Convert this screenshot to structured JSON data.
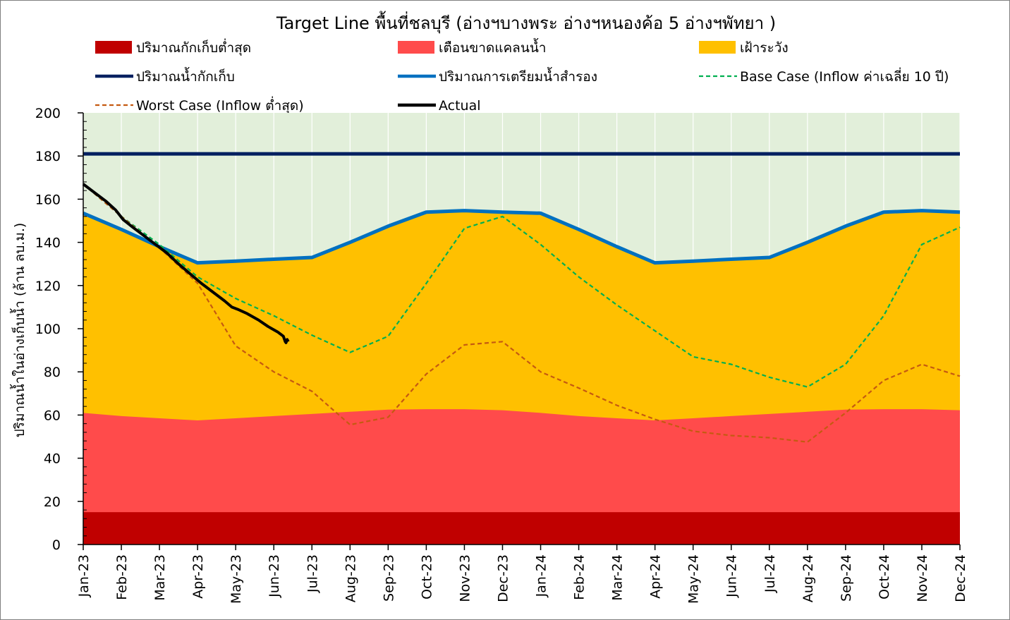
{
  "chart_data": {
    "type": "area",
    "title": "Target Line พื้นที่ชลบุรี (อ่างฯบางพระ อ่างฯหนองค้อ 5 อ่างฯพัทยา )",
    "ylabel": "ปริมาณน้ำในอ่างเก็บน้ำ (ล้าน ลบ.ม.)",
    "xlabel": "",
    "ylim": [
      0,
      200
    ],
    "y_ticks": [
      "0",
      "20",
      "40",
      "60",
      "80",
      "100",
      "120",
      "140",
      "160",
      "180",
      "200"
    ],
    "categories": [
      "Jan-23",
      "Feb-23",
      "Mar-23",
      "Apr-23",
      "May-23",
      "Jun-23",
      "Jul-23",
      "Aug-23",
      "Sep-23",
      "Oct-23",
      "Nov-23",
      "Dec-23",
      "Jan-24",
      "Feb-24",
      "Mar-24",
      "Apr-24",
      "May-24",
      "Jun-24",
      "Jul-24",
      "Aug-24",
      "Sep-24",
      "Oct-24",
      "Nov-24",
      "Dec-24"
    ],
    "background_color": "#e2efda",
    "legend": {
      "position": "top",
      "items": [
        {
          "label": "ปริมาณกักเก็บต่ำสุด",
          "kind": "fill",
          "color": "#c00000"
        },
        {
          "label": "เตือนขาดแคลนน้ำ",
          "kind": "fill",
          "color": "#ff4b4b"
        },
        {
          "label": "เฝ้าระวัง",
          "kind": "fill",
          "color": "#ffc000"
        },
        {
          "label": "ปริมาณน้ำกักเก็บ",
          "kind": "line",
          "color": "#002060"
        },
        {
          "label": "ปริมาณการเตรียมน้ำสำรอง",
          "kind": "line",
          "color": "#0070c0"
        },
        {
          "label": "Base Case (Inflow ค่าเฉลี่ย 10 ปี)",
          "kind": "dash",
          "color": "#00b050"
        },
        {
          "label": "Worst Case (Inflow ต่ำสุด)",
          "kind": "dash",
          "color": "#c55a11"
        },
        {
          "label": "Actual",
          "kind": "line",
          "color": "#000000"
        }
      ]
    },
    "series": [
      {
        "name": "ปริมาณกักเก็บต่ำสุด",
        "style": "area",
        "color": "#c00000",
        "values": [
          15,
          15,
          15,
          15,
          15,
          15,
          15,
          15,
          15,
          15,
          15,
          15,
          15,
          15,
          15,
          15,
          15,
          15,
          15,
          15,
          15,
          15,
          15,
          15
        ]
      },
      {
        "name": "เตือนขาดแคลนน้ำ",
        "style": "area",
        "color": "#ff4b4b",
        "values": [
          61,
          59.5,
          58.5,
          57.5,
          58.5,
          59.5,
          60.5,
          61.5,
          62.5,
          62.7,
          62.7,
          62.2,
          61,
          59.5,
          58.5,
          57.5,
          58.5,
          59.5,
          60.5,
          61.5,
          62.5,
          62.7,
          62.7,
          62.2
        ]
      },
      {
        "name": "เฝ้าระวัง",
        "style": "area",
        "color": "#ffc000",
        "values": [
          153.5,
          146,
          138,
          130.5,
          131.3,
          132.2,
          133,
          140,
          147.5,
          154,
          154.7,
          154,
          153.5,
          146,
          138,
          130.5,
          131.3,
          132.2,
          133,
          140,
          147.5,
          154,
          154.7,
          154
        ]
      },
      {
        "name": "ปริมาณน้ำกักเก็บ",
        "style": "line",
        "color": "#002060",
        "values": [
          181,
          181,
          181,
          181,
          181,
          181,
          181,
          181,
          181,
          181,
          181,
          181,
          181,
          181,
          181,
          181,
          181,
          181,
          181,
          181,
          181,
          181,
          181,
          181
        ]
      },
      {
        "name": "ปริมาณการเตรียมน้ำสำรอง",
        "style": "line",
        "color": "#0070c0",
        "values": [
          153.5,
          146,
          138,
          130.5,
          131.3,
          132.2,
          133,
          140,
          147.5,
          154,
          154.7,
          154,
          153.5,
          146,
          138,
          130.5,
          131.3,
          132.2,
          133,
          140,
          147.5,
          154,
          154.7,
          154
        ]
      },
      {
        "name": "Base Case (Inflow ค่าเฉลี่ย 10 ปี)",
        "style": "dash",
        "color": "#00b050",
        "values": [
          167,
          152,
          139,
          124,
          114,
          106,
          97,
          89,
          96.5,
          121,
          146.5,
          152,
          139,
          124,
          111,
          99,
          87,
          83.5,
          77.5,
          73,
          83.5,
          106,
          139,
          147
        ]
      },
      {
        "name": "Worst Case (Inflow ต่ำสุด)",
        "style": "dash",
        "color": "#c55a11",
        "values": [
          167,
          152,
          137.5,
          121,
          92,
          80,
          71,
          55.5,
          59,
          79,
          92.5,
          94,
          80,
          72.5,
          64.5,
          58,
          52.5,
          50.5,
          49.5,
          47.5,
          61,
          76,
          83.5,
          78
        ]
      },
      {
        "name": "Actual",
        "style": "line",
        "color": "#000000",
        "points": [
          [
            0,
            167
          ],
          [
            0.3,
            163
          ],
          [
            0.6,
            159
          ],
          [
            0.85,
            155
          ],
          [
            1.05,
            150.5
          ],
          [
            1.3,
            147
          ],
          [
            1.6,
            143
          ],
          [
            1.9,
            139
          ],
          [
            2.2,
            135
          ],
          [
            2.5,
            130
          ],
          [
            2.8,
            125.5
          ],
          [
            3.1,
            121
          ],
          [
            3.4,
            117
          ],
          [
            3.7,
            113
          ],
          [
            3.9,
            110
          ],
          [
            4.05,
            109
          ],
          [
            4.3,
            107
          ],
          [
            4.6,
            104
          ],
          [
            4.85,
            101
          ],
          [
            5.1,
            98.5
          ],
          [
            5.25,
            96.5
          ],
          [
            5.3,
            94
          ],
          [
            5.32,
            93.5
          ],
          [
            5.35,
            95
          ],
          [
            5.38,
            94
          ]
        ]
      }
    ]
  }
}
